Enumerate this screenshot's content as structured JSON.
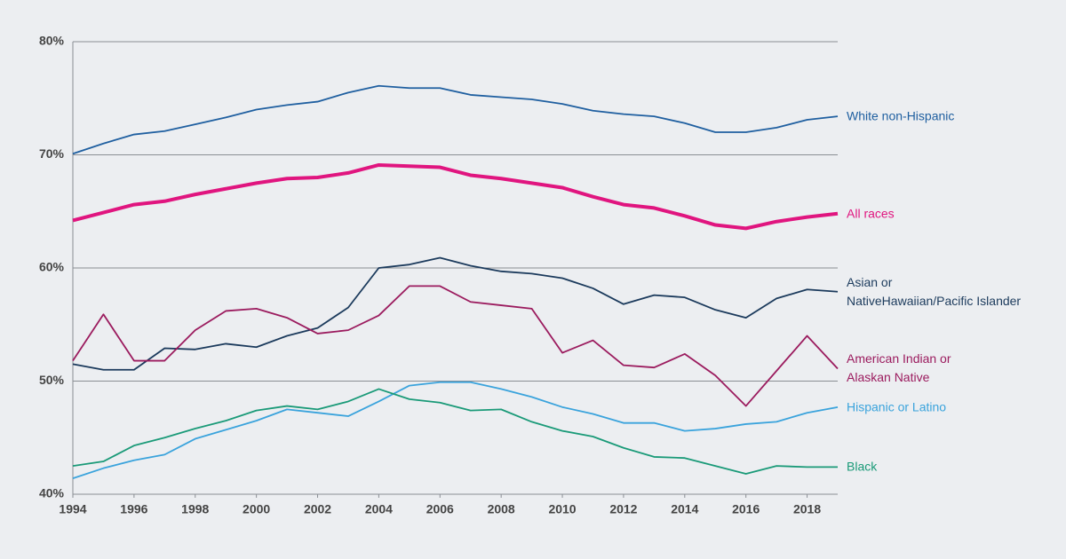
{
  "chart_data": {
    "type": "line",
    "x": [
      1994,
      1995,
      1996,
      1997,
      1998,
      1999,
      2000,
      2001,
      2002,
      2003,
      2004,
      2005,
      2006,
      2007,
      2008,
      2009,
      2010,
      2011,
      2012,
      2013,
      2014,
      2015,
      2016,
      2017,
      2018,
      2019
    ],
    "xlim": [
      1994,
      2019
    ],
    "xticks": [
      1994,
      1996,
      1998,
      2000,
      2002,
      2004,
      2006,
      2008,
      2010,
      2012,
      2014,
      2016,
      2018
    ],
    "ylim": [
      40,
      80
    ],
    "yticks": [
      {
        "value": 40,
        "label": "40%"
      },
      {
        "value": 50,
        "label": "50%"
      },
      {
        "value": 60,
        "label": "60%"
      },
      {
        "value": 70,
        "label": "70%"
      },
      {
        "value": 80,
        "label": "80%"
      }
    ],
    "grid": true,
    "series": [
      {
        "name": "White non-Hispanic",
        "color": "#1f5fa0",
        "values": [
          70.1,
          71.0,
          71.8,
          72.1,
          72.7,
          73.3,
          74.0,
          74.4,
          74.7,
          75.5,
          76.1,
          75.9,
          75.9,
          75.3,
          75.1,
          74.9,
          74.5,
          73.9,
          73.6,
          73.4,
          72.8,
          72.0,
          72.0,
          72.4,
          73.1,
          73.4
        ]
      },
      {
        "name": "All races",
        "color": "#e0157f",
        "values": [
          64.2,
          64.9,
          65.6,
          65.9,
          66.5,
          67.0,
          67.5,
          67.9,
          68.0,
          68.4,
          69.1,
          69.0,
          68.9,
          68.2,
          67.9,
          67.5,
          67.1,
          66.3,
          65.6,
          65.3,
          64.6,
          63.8,
          63.5,
          64.1,
          64.5,
          64.8
        ]
      },
      {
        "name": "Asian or\nNativeHawaiian/Pacific Islander",
        "color": "#1b3a5c",
        "values": [
          51.5,
          51.0,
          51.0,
          52.9,
          52.8,
          53.3,
          53.0,
          54.0,
          54.7,
          56.5,
          60.0,
          60.3,
          60.9,
          60.2,
          59.7,
          59.5,
          59.1,
          58.2,
          56.8,
          57.6,
          57.4,
          56.3,
          55.6,
          57.3,
          58.1,
          57.9
        ]
      },
      {
        "name": "American Indian or\nAlaskan Native",
        "color": "#9b1b5e",
        "values": [
          51.8,
          55.9,
          51.8,
          51.8,
          54.5,
          56.2,
          56.4,
          55.6,
          54.2,
          54.5,
          55.8,
          58.4,
          58.4,
          57.0,
          56.7,
          56.4,
          52.5,
          53.6,
          51.4,
          51.2,
          52.4,
          50.5,
          47.8,
          50.9,
          54.0,
          51.1
        ]
      },
      {
        "name": "Hispanic or Latino",
        "color": "#3aa3dc",
        "values": [
          41.4,
          42.3,
          43.0,
          43.5,
          44.9,
          45.7,
          46.5,
          47.5,
          47.2,
          46.9,
          48.2,
          49.6,
          49.9,
          49.9,
          49.3,
          48.6,
          47.7,
          47.1,
          46.3,
          46.3,
          45.6,
          45.8,
          46.2,
          46.4,
          47.2,
          47.7
        ]
      },
      {
        "name": "Black",
        "color": "#1a9a78",
        "values": [
          42.5,
          42.9,
          44.3,
          45.0,
          45.8,
          46.5,
          47.4,
          47.8,
          47.5,
          48.2,
          49.3,
          48.4,
          48.1,
          47.4,
          47.5,
          46.4,
          45.6,
          45.1,
          44.1,
          43.3,
          43.2,
          42.5,
          41.8,
          42.5,
          42.4,
          42.4
        ]
      }
    ]
  }
}
